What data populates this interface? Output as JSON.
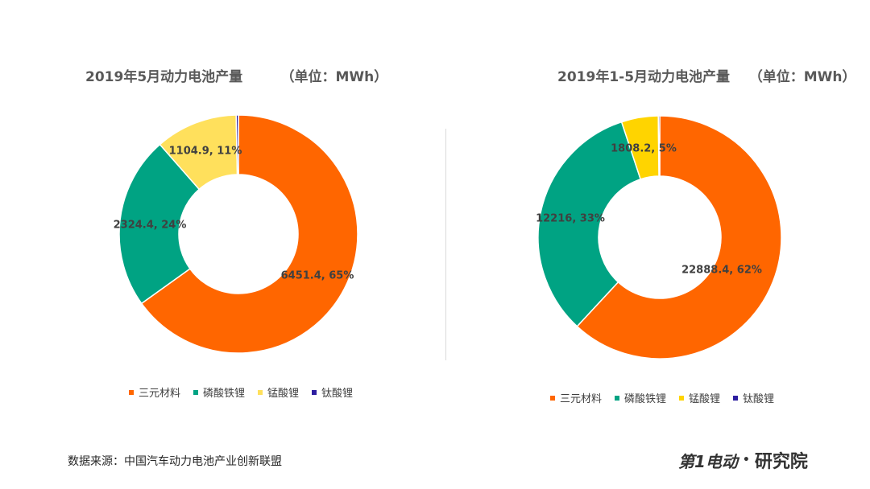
{
  "charts": [
    {
      "title": "2019年5月动力电池产量        （单位：MWh）",
      "legend": [
        "三元材料",
        "磷酸铁锂",
        "锰酸锂",
        "钛酸锂"
      ]
    },
    {
      "title": "2019年1-5月动力电池产量    （单位：MWh）",
      "legend": [
        "三元材料",
        "磷酸铁锂",
        "锰酸锂",
        "钛酸锂"
      ]
    }
  ],
  "chart_data": [
    {
      "type": "pie",
      "title": "2019年5月动力电池产量        （单位：MWh）",
      "unit": "MWh",
      "categories": [
        "三元材料",
        "磷酸铁锂",
        "锰酸锂",
        "钛酸锂"
      ],
      "values": [
        6451.4,
        2324.4,
        1104.9,
        30
      ],
      "percents": [
        65,
        24,
        11,
        0
      ],
      "labels": [
        "6451.4, 65%",
        "2324.4, 24%",
        "1104.9, 11%",
        ""
      ],
      "colors": [
        "#ff6600",
        "#00a383",
        "#ffe05c",
        "#2d1ea0"
      ],
      "legend_position": "bottom"
    },
    {
      "type": "pie",
      "title": "2019年1-5月动力电池产量    （单位：MWh）",
      "unit": "MWh",
      "categories": [
        "三元材料",
        "磷酸铁锂",
        "锰酸锂",
        "钛酸锂"
      ],
      "values": [
        22888.4,
        12216,
        1808.2,
        70
      ],
      "percents": [
        62,
        33,
        5,
        0
      ],
      "labels": [
        "22888.4, 62%",
        "12216, 33%",
        "1808.2, 5%",
        ""
      ],
      "colors": [
        "#ff6600",
        "#00a383",
        "#ffd400",
        "#2d1ea0"
      ],
      "legend_position": "bottom"
    }
  ],
  "footer": {
    "source": "数据来源：中国汽车动力电池产业创新联盟",
    "logo_text": "第1电动",
    "logo_suffix": "研究院"
  }
}
